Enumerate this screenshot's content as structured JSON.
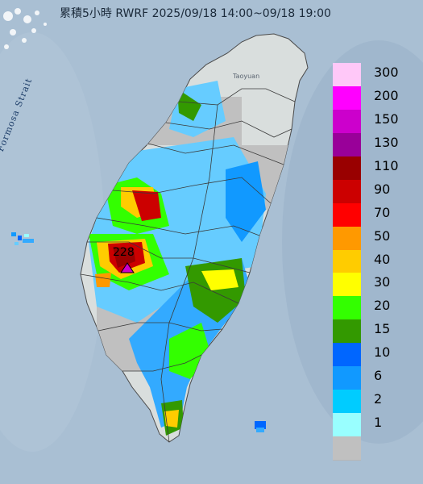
{
  "title": "累積5小時 RWRF 2025/09/18 14:00~09/18 19:00",
  "strait_label": "Formosa Strait",
  "city_label": "Taoyuan",
  "max_marker_value": "228",
  "legend": {
    "levels": [
      {
        "label": "300",
        "color": "#ffc8f8"
      },
      {
        "label": "200",
        "color": "#ff00ff"
      },
      {
        "label": "150",
        "color": "#cc00cc"
      },
      {
        "label": "130",
        "color": "#990099"
      },
      {
        "label": "110",
        "color": "#990000"
      },
      {
        "label": "90",
        "color": "#cc0000"
      },
      {
        "label": "70",
        "color": "#ff0000"
      },
      {
        "label": "50",
        "color": "#ff9900"
      },
      {
        "label": "40",
        "color": "#ffcc00"
      },
      {
        "label": "30",
        "color": "#ffff00"
      },
      {
        "label": "20",
        "color": "#33ff00"
      },
      {
        "label": "15",
        "color": "#339900"
      },
      {
        "label": "10",
        "color": "#0066ff"
      },
      {
        "label": "6",
        "color": "#1199ff"
      },
      {
        "label": "2",
        "color": "#00ccff"
      },
      {
        "label": "1",
        "color": "#99ffff"
      },
      {
        "label": "",
        "color": "#c0c0c0"
      }
    ]
  }
}
